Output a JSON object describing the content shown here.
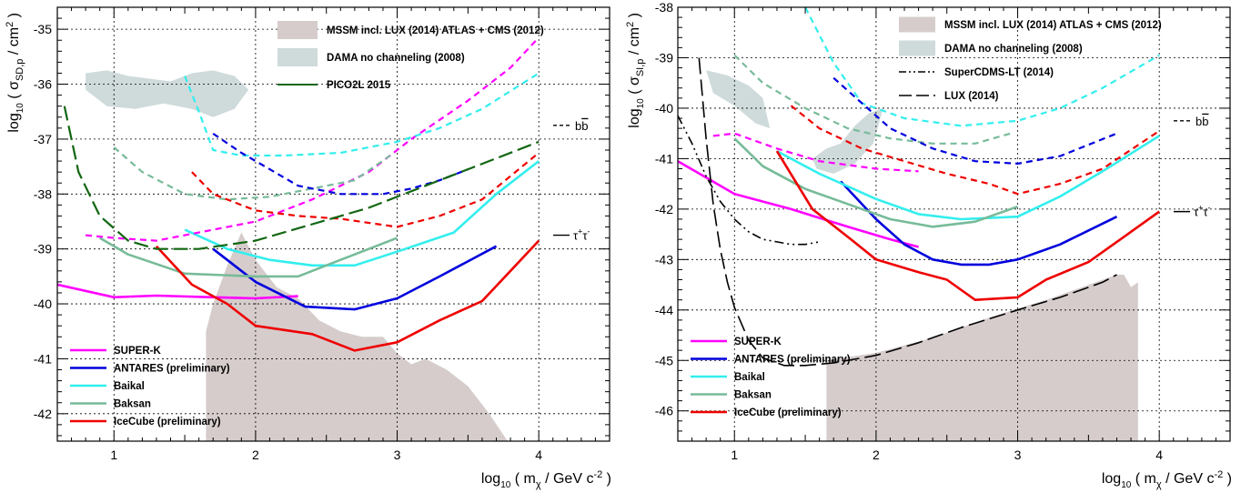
{
  "colors": {
    "superk": "#ff00ff",
    "antares": "#0000dd",
    "baikal": "#33eeee",
    "baksan": "#77bb99",
    "icecube": "#ee0000",
    "mssm_fill": "#d6cccc",
    "dama_fill": "#cfdada",
    "pico": "#116611",
    "grid": "#000000"
  },
  "chart_data": [
    {
      "type": "line",
      "panel": "spin-dependent",
      "xlabel": "log10 ( mχ / GeV c^-2 )",
      "ylabel": "log10 ( σSD,p / cm^2 )",
      "xlim": [
        0.6,
        4.5
      ],
      "ylim": [
        -42.5,
        -34.6
      ],
      "x_ticks": [
        "1",
        "2",
        "3",
        "4"
      ],
      "y_ticks": [
        "-42",
        "-41",
        "-40",
        "-39",
        "-38",
        "-37",
        "-36",
        "-35"
      ],
      "grid": true,
      "legend": [
        "SUPER-K",
        "ANTARES (preliminary)",
        "Baikal",
        "Baksan",
        "IceCube (preliminary)"
      ],
      "legend_position": "bottom-left",
      "top_legend": [
        "MSSM incl. LUX (2014) ATLAS + CMS (2012)",
        "DAMA no channeling (2008)",
        "PICO2L 2015"
      ],
      "top_legend_position": "top-center",
      "channel_labels": [
        "b b̄",
        "τ+τ-"
      ],
      "series": [
        {
          "name": "SUPER-K",
          "style": "solid",
          "color_key": "superk",
          "x": [
            0.6,
            1.0,
            1.3,
            1.7,
            2.0,
            2.3
          ],
          "y": [
            -39.65,
            -39.88,
            -39.85,
            -39.88,
            -39.9,
            -39.86
          ]
        },
        {
          "name": "ANTARES (preliminary)",
          "style": "solid",
          "color_key": "antares",
          "x": [
            1.7,
            2.0,
            2.35,
            2.7,
            3.0,
            3.3,
            3.7
          ],
          "y": [
            -39.0,
            -39.6,
            -40.05,
            -40.1,
            -39.9,
            -39.5,
            -38.95
          ]
        },
        {
          "name": "Baikal",
          "style": "solid",
          "color_key": "baikal",
          "x": [
            1.5,
            1.8,
            2.1,
            2.4,
            2.7,
            3.0,
            3.4,
            3.7,
            4.0
          ],
          "y": [
            -38.65,
            -39.0,
            -39.2,
            -39.3,
            -39.3,
            -39.05,
            -38.7,
            -38.0,
            -37.4
          ]
        },
        {
          "name": "Baksan",
          "style": "solid",
          "color_key": "baksan",
          "x": [
            0.9,
            1.1,
            1.5,
            2.0,
            2.3,
            2.6,
            3.0
          ],
          "y": [
            -38.8,
            -39.1,
            -39.45,
            -39.5,
            -39.5,
            -39.2,
            -38.8
          ]
        },
        {
          "name": "IceCube (preliminary)",
          "style": "solid",
          "color_key": "icecube",
          "x": [
            1.3,
            1.55,
            1.8,
            2.0,
            2.4,
            2.7,
            3.0,
            3.3,
            3.6,
            3.8,
            4.0
          ],
          "y": [
            -38.95,
            -39.65,
            -40.0,
            -40.4,
            -40.55,
            -40.85,
            -40.7,
            -40.3,
            -39.95,
            -39.4,
            -38.85
          ]
        },
        {
          "name": "SUPER-K b b̄",
          "style": "dashed",
          "color_key": "superk",
          "x": [
            0.8,
            1.0,
            1.3,
            1.6,
            2.0,
            2.4,
            2.8,
            3.1,
            3.5,
            3.8,
            4.0
          ],
          "y": [
            -38.75,
            -38.8,
            -38.85,
            -38.7,
            -38.5,
            -38.1,
            -37.6,
            -37.0,
            -36.3,
            -35.7,
            -35.15
          ]
        },
        {
          "name": "Baksan b b̄",
          "style": "dashed",
          "color_key": "baksan",
          "x": [
            1.0,
            1.2,
            1.5,
            1.8,
            2.1,
            2.4,
            2.7,
            2.95
          ],
          "y": [
            -37.15,
            -37.6,
            -38.0,
            -38.1,
            -38.05,
            -37.9,
            -37.75,
            -37.3
          ]
        },
        {
          "name": "Baikal b b̄",
          "style": "dashed",
          "color_key": "baikal",
          "x": [
            1.5,
            1.6,
            1.7,
            1.9,
            2.2,
            2.6,
            3.0,
            3.3,
            3.6,
            4.0
          ],
          "y": [
            -35.85,
            -36.5,
            -37.2,
            -37.3,
            -37.3,
            -37.25,
            -37.05,
            -36.8,
            -36.45,
            -35.8
          ]
        },
        {
          "name": "ANTARES b b̄",
          "style": "dashed",
          "color_key": "antares",
          "x": [
            1.7,
            1.9,
            2.1,
            2.3,
            2.6,
            2.9,
            3.1,
            3.3,
            3.5
          ],
          "y": [
            -36.9,
            -37.25,
            -37.55,
            -37.85,
            -38.0,
            -38.0,
            -37.9,
            -37.75,
            -37.55
          ]
        },
        {
          "name": "IceCube b b̄",
          "style": "dashed",
          "color_key": "icecube",
          "x": [
            1.55,
            1.7,
            2.0,
            2.3,
            2.6,
            3.0,
            3.3,
            3.6,
            4.0
          ],
          "y": [
            -37.6,
            -38.0,
            -38.3,
            -38.4,
            -38.45,
            -38.6,
            -38.4,
            -38.1,
            -37.25
          ]
        },
        {
          "name": "PICO2L 2015",
          "style": "long-dashed",
          "color_key": "pico",
          "x": [
            0.65,
            0.75,
            0.9,
            1.1,
            1.3,
            1.6,
            2.0,
            2.4,
            2.8,
            3.2,
            3.6,
            4.0
          ],
          "y": [
            -36.4,
            -37.6,
            -38.4,
            -38.85,
            -39.0,
            -39.0,
            -38.85,
            -38.55,
            -38.25,
            -37.85,
            -37.45,
            -37.05
          ]
        }
      ],
      "regions": [
        {
          "name": "MSSM incl. LUX (2014) ATLAS + CMS (2012)",
          "color_key": "mssm_fill",
          "x": [
            1.65,
            1.7,
            1.8,
            1.9,
            2.0,
            2.15,
            2.3,
            2.45,
            2.6,
            2.75,
            2.9,
            3.0,
            3.1,
            3.2,
            3.35,
            3.5,
            3.65,
            3.78,
            1.65
          ],
          "y": [
            -40.5,
            -40.0,
            -39.3,
            -38.7,
            -39.2,
            -39.7,
            -39.9,
            -40.3,
            -40.5,
            -40.6,
            -40.6,
            -40.9,
            -41.1,
            -41.0,
            -41.2,
            -41.5,
            -42.0,
            -42.5,
            -42.5
          ]
        },
        {
          "name": "DAMA no channeling (2008)",
          "color_key": "dama_fill",
          "x": [
            0.8,
            0.95,
            1.1,
            1.25,
            1.4,
            1.55,
            1.7,
            1.85,
            1.95,
            1.85,
            1.7,
            1.55,
            1.35,
            1.15,
            0.95,
            0.8
          ],
          "y": [
            -35.8,
            -35.75,
            -35.85,
            -35.9,
            -35.95,
            -35.8,
            -35.75,
            -35.85,
            -36.1,
            -36.45,
            -36.6,
            -36.45,
            -36.35,
            -36.45,
            -36.4,
            -36.1
          ]
        }
      ]
    },
    {
      "type": "line",
      "panel": "spin-independent",
      "xlabel": "log10 ( mχ / GeV c^-2 )",
      "ylabel": "log10 ( σSI,p / cm^2 )",
      "xlim": [
        0.6,
        4.5
      ],
      "ylim": [
        -46.6,
        -38.0
      ],
      "x_ticks": [
        "1",
        "2",
        "3",
        "4"
      ],
      "y_ticks": [
        "-46",
        "-45",
        "-44",
        "-43",
        "-42",
        "-41",
        "-40",
        "-39",
        "-38"
      ],
      "grid": true,
      "legend": [
        "SUPER-K",
        "ANTARES (preliminary)",
        "Baikal",
        "Baksan",
        "IceCube (preliminary)"
      ],
      "legend_position": "bottom-left",
      "top_legend": [
        "MSSM incl. LUX (2014) ATLAS + CMS (2012)",
        "DAMA no channeling (2008)",
        "SuperCDMS-LT (2014)",
        "LUX (2014)"
      ],
      "top_legend_position": "top-center",
      "channel_labels": [
        "b b̄",
        "τ+τ-"
      ],
      "series": [
        {
          "name": "SUPER-K",
          "style": "solid",
          "color_key": "superk",
          "x": [
            0.6,
            1.0,
            1.4,
            1.8,
            2.1,
            2.3
          ],
          "y": [
            -41.05,
            -41.7,
            -42.0,
            -42.35,
            -42.6,
            -42.75
          ]
        },
        {
          "name": "ANTARES (preliminary)",
          "style": "solid",
          "color_key": "antares",
          "x": [
            1.75,
            2.0,
            2.2,
            2.4,
            2.6,
            2.8,
            3.0,
            3.3,
            3.7
          ],
          "y": [
            -41.45,
            -42.2,
            -42.7,
            -43.0,
            -43.1,
            -43.1,
            -43.0,
            -42.7,
            -42.15
          ]
        },
        {
          "name": "Baikal",
          "style": "solid",
          "color_key": "baikal",
          "x": [
            1.3,
            1.6,
            2.0,
            2.3,
            2.6,
            3.0,
            3.3,
            3.6,
            4.0
          ],
          "y": [
            -40.85,
            -41.3,
            -41.8,
            -42.1,
            -42.2,
            -42.15,
            -41.75,
            -41.25,
            -40.55
          ]
        },
        {
          "name": "Baksan",
          "style": "solid",
          "color_key": "baksan",
          "x": [
            1.0,
            1.2,
            1.5,
            1.8,
            2.1,
            2.4,
            2.7,
            3.0
          ],
          "y": [
            -40.6,
            -41.15,
            -41.6,
            -41.9,
            -42.2,
            -42.35,
            -42.25,
            -41.95
          ]
        },
        {
          "name": "IceCube (preliminary)",
          "style": "solid",
          "color_key": "icecube",
          "x": [
            1.3,
            1.55,
            1.8,
            2.0,
            2.3,
            2.5,
            2.7,
            3.0,
            3.2,
            3.5,
            3.75,
            4.0
          ],
          "y": [
            -40.85,
            -42.0,
            -42.55,
            -43.0,
            -43.25,
            -43.4,
            -43.8,
            -43.75,
            -43.4,
            -43.05,
            -42.55,
            -42.05
          ]
        },
        {
          "name": "SUPER-K b b̄",
          "style": "dashed",
          "color_key": "superk",
          "x": [
            0.85,
            1.0,
            1.3,
            1.6,
            2.0,
            2.3
          ],
          "y": [
            -40.55,
            -40.5,
            -40.8,
            -41.05,
            -41.2,
            -41.25
          ]
        },
        {
          "name": "Baksan b b̄",
          "style": "dashed",
          "color_key": "baksan",
          "x": [
            1.0,
            1.2,
            1.5,
            1.8,
            2.1,
            2.4,
            2.7,
            2.95
          ],
          "y": [
            -38.95,
            -39.5,
            -40.0,
            -40.4,
            -40.6,
            -40.7,
            -40.7,
            -40.5
          ]
        },
        {
          "name": "Baikal b b̄",
          "style": "dashed",
          "color_key": "baikal",
          "x": [
            1.5,
            1.7,
            1.9,
            2.2,
            2.6,
            3.0,
            3.3,
            3.6,
            4.0
          ],
          "y": [
            -38.0,
            -39.1,
            -39.9,
            -40.2,
            -40.35,
            -40.25,
            -40.0,
            -39.6,
            -38.95
          ]
        },
        {
          "name": "ANTARES b b̄",
          "style": "dashed",
          "color_key": "antares",
          "x": [
            1.7,
            1.9,
            2.1,
            2.4,
            2.7,
            3.0,
            3.3,
            3.7
          ],
          "y": [
            -39.4,
            -39.9,
            -40.4,
            -40.8,
            -41.05,
            -41.1,
            -40.95,
            -40.5
          ]
        },
        {
          "name": "IceCube b b̄",
          "style": "dashed",
          "color_key": "icecube",
          "x": [
            1.4,
            1.6,
            1.9,
            2.2,
            2.5,
            2.8,
            3.0,
            3.3,
            3.6,
            4.0
          ],
          "y": [
            -39.95,
            -40.4,
            -40.8,
            -41.05,
            -41.3,
            -41.5,
            -41.7,
            -41.5,
            -41.2,
            -40.45
          ]
        },
        {
          "name": "SuperCDMS-LT (2014)",
          "style": "dash-dot-dot",
          "color_key": "black",
          "x": [
            0.6,
            0.7,
            0.8,
            0.9,
            1.0,
            1.1,
            1.2,
            1.3,
            1.4,
            1.5,
            1.6
          ],
          "y": [
            -40.15,
            -40.7,
            -41.35,
            -41.85,
            -42.2,
            -42.45,
            -42.6,
            -42.65,
            -42.7,
            -42.7,
            -42.65
          ]
        },
        {
          "name": "LUX (2014)",
          "style": "long-dash",
          "color_key": "black",
          "x": [
            0.75,
            0.8,
            0.85,
            0.9,
            0.95,
            1.0,
            1.1,
            1.2,
            1.35,
            1.5,
            1.7,
            2.0,
            2.3,
            2.6,
            3.0,
            3.3,
            3.6,
            3.7
          ],
          "y": [
            -39.0,
            -40.6,
            -41.9,
            -42.8,
            -43.45,
            -43.95,
            -44.6,
            -44.95,
            -45.1,
            -45.1,
            -45.05,
            -44.9,
            -44.65,
            -44.35,
            -44.0,
            -43.75,
            -43.45,
            -43.3
          ]
        }
      ],
      "regions": [
        {
          "name": "MSSM incl. LUX (2014) ATLAS + CMS (2012)",
          "color_key": "mssm_fill",
          "x": [
            1.65,
            1.65,
            2.0,
            2.4,
            2.8,
            3.2,
            3.5,
            3.7,
            3.75,
            3.8,
            3.85,
            3.85,
            1.65
          ],
          "y": [
            -46.6,
            -45.0,
            -44.85,
            -44.55,
            -44.15,
            -43.8,
            -43.5,
            -43.3,
            -43.3,
            -43.55,
            -43.45,
            -46.6,
            -46.6
          ]
        },
        {
          "name": "DAMA no channeling (2008)",
          "color_key": "dama_fill",
          "x": [
            0.8,
            0.95,
            1.1,
            1.2,
            1.25,
            1.15,
            1.0,
            0.85,
            0.8
          ],
          "y": [
            -39.25,
            -39.35,
            -39.55,
            -39.8,
            -40.4,
            -40.3,
            -39.95,
            -39.7,
            -39.25
          ]
        },
        {
          "name": "DAMA no channeling (2008)",
          "color_key": "dama_fill",
          "x": [
            1.55,
            1.65,
            1.75,
            1.85,
            1.95,
            2.05,
            1.98,
            1.85,
            1.7,
            1.58
          ],
          "y": [
            -41.0,
            -40.8,
            -40.7,
            -40.35,
            -40.1,
            -40.0,
            -40.7,
            -41.1,
            -41.3,
            -41.2
          ]
        }
      ]
    }
  ]
}
